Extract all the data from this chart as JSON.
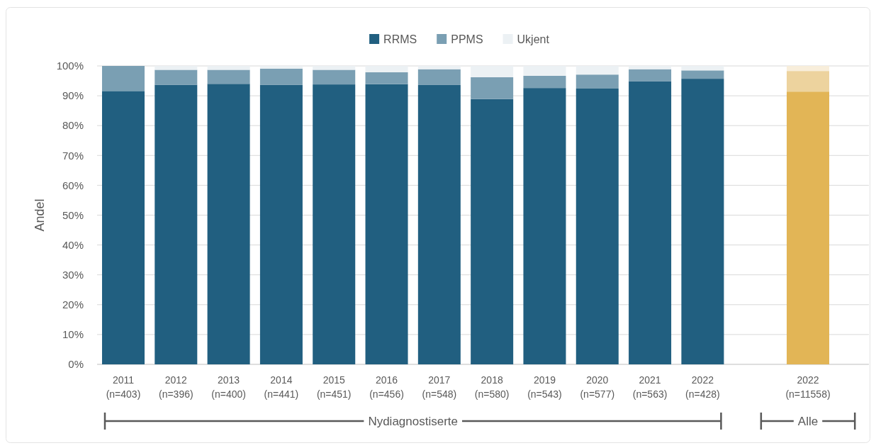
{
  "chart_data": {
    "type": "bar",
    "stacked": true,
    "ylabel": "Andel",
    "categories": [
      "2011\n(n=403)",
      "2012\n(n=396)",
      "2013\n(n=400)",
      "2014\n(n=441)",
      "2015\n(n=451)",
      "2016\n(n=456)",
      "2017\n(n=548)",
      "2018\n(n=580)",
      "2019\n(n=543)",
      "2020\n(n=577)",
      "2021\n(n=563)",
      "2022\n(n=428)",
      null,
      "2022\n(n=11558)"
    ],
    "series": [
      {
        "name": "RRMS",
        "color": "#215f80",
        "colors": [
          "#215f80",
          "#215f80",
          "#215f80",
          "#215f80",
          "#215f80",
          "#215f80",
          "#215f80",
          "#215f80",
          "#215f80",
          "#215f80",
          "#215f80",
          "#215f80",
          null,
          "#e2b556"
        ],
        "values": [
          91.6,
          93.7,
          94.0,
          93.7,
          93.8,
          93.9,
          93.6,
          88.9,
          92.6,
          92.4,
          94.9,
          95.7,
          null,
          91.4
        ]
      },
      {
        "name": "PPMS",
        "color": "#7a9fb3",
        "colors": [
          "#7a9fb3",
          "#7a9fb3",
          "#7a9fb3",
          "#7a9fb3",
          "#7a9fb3",
          "#7a9fb3",
          "#7a9fb3",
          "#7a9fb3",
          "#7a9fb3",
          "#7a9fb3",
          "#7a9fb3",
          "#7a9fb3",
          null,
          "#edd39e"
        ],
        "values": [
          8.4,
          5.0,
          4.7,
          5.4,
          4.9,
          4.0,
          5.3,
          7.3,
          4.1,
          4.7,
          4.0,
          2.8,
          null,
          6.9
        ]
      },
      {
        "name": "Ukjent",
        "color": "#ecf1f4",
        "colors": [
          null,
          "#ecf1f4",
          "#ecf1f4",
          "#ecf1f4",
          "#ecf1f4",
          "#ecf1f4",
          "#ecf1f4",
          "#ecf1f4",
          "#ecf1f4",
          "#ecf1f4",
          "#ecf1f4",
          "#ecf1f4",
          null,
          "#f8eedb"
        ],
        "values": [
          0,
          1.3,
          1.3,
          0.9,
          1.3,
          2.1,
          1.1,
          3.8,
          3.3,
          2.9,
          1.1,
          1.5,
          null,
          1.7
        ]
      }
    ],
    "ylim": [
      0,
      100
    ],
    "yticks": [
      {
        "value": 0,
        "label": "0%"
      },
      {
        "value": 10,
        "label": "10%"
      },
      {
        "value": 20,
        "label": "20%"
      },
      {
        "value": 30,
        "label": "30%"
      },
      {
        "value": 40,
        "label": "40%"
      },
      {
        "value": 50,
        "label": "50%"
      },
      {
        "value": 60,
        "label": "60%"
      },
      {
        "value": 70,
        "label": "70%"
      },
      {
        "value": 80,
        "label": "80%"
      },
      {
        "value": 90,
        "label": "90%"
      },
      {
        "value": 100,
        "label": "100%"
      }
    ],
    "grid": "y",
    "legend": "top",
    "annotations": [
      "Nydiagnostiserte",
      "Alle"
    ]
  }
}
